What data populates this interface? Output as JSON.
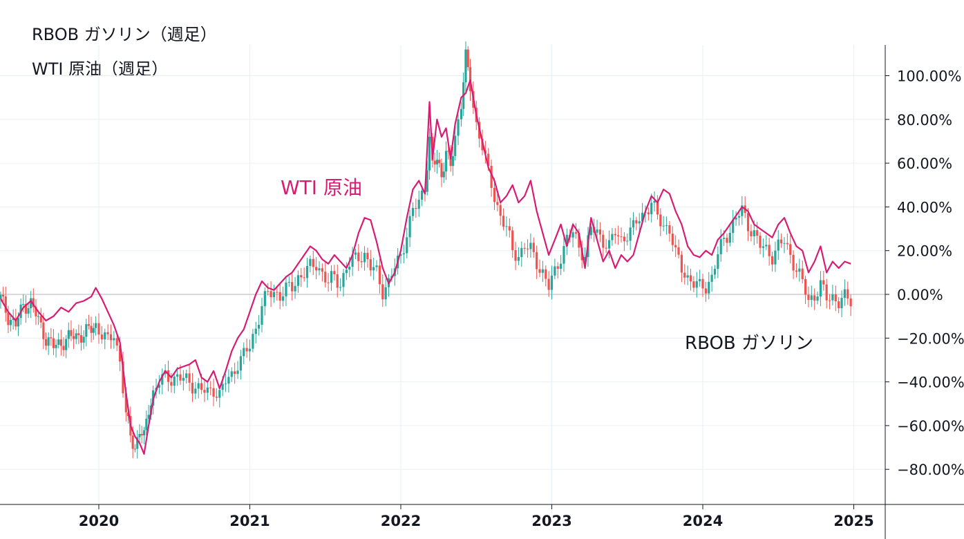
{
  "legend": {
    "rbob": "RBOB ガソリン（週足）",
    "wti": "WTI 原油（週足）"
  },
  "colors": {
    "up": "#26a69a",
    "down": "#ef5350",
    "wti_line": "#d81b72",
    "grid": "#e6f0f5",
    "axis": "#131722",
    "zero_line": "#b2b5be"
  },
  "chart_data": {
    "type": "line",
    "title": "",
    "x_range": [
      2019.35,
      2025.25
    ],
    "ylim": [
      -95,
      115
    ],
    "y_ticks": [
      100,
      80,
      60,
      40,
      20,
      0,
      -20,
      -40,
      -60,
      -80
    ],
    "y_tick_labels": [
      "100.00%",
      "80.00%",
      "60.00%",
      "40.00%",
      "20.00%",
      "0.00%",
      "−20.00%",
      "−40.00%",
      "−60.00%",
      "−80.00%"
    ],
    "x_ticks": [
      2020,
      2021,
      2022,
      2023,
      2024,
      2025
    ],
    "x_tick_labels": [
      "2020",
      "2021",
      "2022",
      "2023",
      "2024",
      "2025"
    ],
    "grid": true,
    "series": [
      {
        "name": "WTI 原油",
        "style": "line",
        "label": "WTI 原油",
        "points": [
          [
            2019.35,
            -2
          ],
          [
            2019.4,
            -8
          ],
          [
            2019.45,
            -12
          ],
          [
            2019.5,
            -6
          ],
          [
            2019.55,
            -3
          ],
          [
            2019.6,
            -8
          ],
          [
            2019.65,
            -12
          ],
          [
            2019.7,
            -10
          ],
          [
            2019.75,
            -6
          ],
          [
            2019.8,
            -8
          ],
          [
            2019.85,
            -4
          ],
          [
            2019.9,
            -3
          ],
          [
            2019.95,
            -1
          ],
          [
            2019.98,
            3
          ],
          [
            2020.02,
            -2
          ],
          [
            2020.06,
            -8
          ],
          [
            2020.1,
            -14
          ],
          [
            2020.14,
            -22
          ],
          [
            2020.18,
            -45
          ],
          [
            2020.21,
            -60
          ],
          [
            2020.24,
            -65
          ],
          [
            2020.27,
            -68
          ],
          [
            2020.3,
            -73
          ],
          [
            2020.33,
            -60
          ],
          [
            2020.36,
            -48
          ],
          [
            2020.4,
            -40
          ],
          [
            2020.44,
            -35
          ],
          [
            2020.48,
            -38
          ],
          [
            2020.52,
            -34
          ],
          [
            2020.56,
            -33
          ],
          [
            2020.6,
            -32
          ],
          [
            2020.64,
            -30
          ],
          [
            2020.68,
            -38
          ],
          [
            2020.72,
            -40
          ],
          [
            2020.76,
            -35
          ],
          [
            2020.8,
            -43
          ],
          [
            2020.84,
            -35
          ],
          [
            2020.88,
            -26
          ],
          [
            2020.92,
            -20
          ],
          [
            2020.96,
            -16
          ],
          [
            2021.0,
            -8
          ],
          [
            2021.04,
            0
          ],
          [
            2021.08,
            6
          ],
          [
            2021.12,
            3
          ],
          [
            2021.16,
            2
          ],
          [
            2021.2,
            5
          ],
          [
            2021.24,
            8
          ],
          [
            2021.28,
            10
          ],
          [
            2021.32,
            14
          ],
          [
            2021.36,
            18
          ],
          [
            2021.4,
            22
          ],
          [
            2021.44,
            20
          ],
          [
            2021.48,
            16
          ],
          [
            2021.52,
            14
          ],
          [
            2021.56,
            18
          ],
          [
            2021.6,
            15
          ],
          [
            2021.64,
            12
          ],
          [
            2021.68,
            18
          ],
          [
            2021.72,
            28
          ],
          [
            2021.76,
            35
          ],
          [
            2021.8,
            34
          ],
          [
            2021.84,
            24
          ],
          [
            2021.88,
            12
          ],
          [
            2021.92,
            5
          ],
          [
            2021.96,
            10
          ],
          [
            2022.0,
            20
          ],
          [
            2022.04,
            35
          ],
          [
            2022.08,
            48
          ],
          [
            2022.12,
            52
          ],
          [
            2022.16,
            46
          ],
          [
            2022.19,
            88
          ],
          [
            2022.21,
            62
          ],
          [
            2022.24,
            80
          ],
          [
            2022.27,
            72
          ],
          [
            2022.3,
            76
          ],
          [
            2022.33,
            62
          ],
          [
            2022.36,
            78
          ],
          [
            2022.4,
            90
          ],
          [
            2022.43,
            92
          ],
          [
            2022.46,
            98
          ],
          [
            2022.5,
            82
          ],
          [
            2022.54,
            70
          ],
          [
            2022.58,
            58
          ],
          [
            2022.62,
            52
          ],
          [
            2022.66,
            42
          ],
          [
            2022.7,
            45
          ],
          [
            2022.74,
            50
          ],
          [
            2022.78,
            42
          ],
          [
            2022.82,
            45
          ],
          [
            2022.86,
            52
          ],
          [
            2022.9,
            38
          ],
          [
            2022.94,
            28
          ],
          [
            2022.98,
            18
          ],
          [
            2023.02,
            25
          ],
          [
            2023.06,
            32
          ],
          [
            2023.1,
            22
          ],
          [
            2023.14,
            32
          ],
          [
            2023.18,
            28
          ],
          [
            2023.22,
            12
          ],
          [
            2023.26,
            35
          ],
          [
            2023.3,
            25
          ],
          [
            2023.34,
            15
          ],
          [
            2023.38,
            20
          ],
          [
            2023.42,
            12
          ],
          [
            2023.46,
            18
          ],
          [
            2023.5,
            15
          ],
          [
            2023.54,
            18
          ],
          [
            2023.58,
            28
          ],
          [
            2023.62,
            38
          ],
          [
            2023.66,
            45
          ],
          [
            2023.7,
            42
          ],
          [
            2023.74,
            48
          ],
          [
            2023.78,
            46
          ],
          [
            2023.82,
            38
          ],
          [
            2023.86,
            32
          ],
          [
            2023.9,
            22
          ],
          [
            2023.94,
            18
          ],
          [
            2023.98,
            17
          ],
          [
            2024.02,
            20
          ],
          [
            2024.06,
            18
          ],
          [
            2024.1,
            25
          ],
          [
            2024.14,
            28
          ],
          [
            2024.18,
            32
          ],
          [
            2024.22,
            36
          ],
          [
            2024.26,
            40
          ],
          [
            2024.3,
            38
          ],
          [
            2024.34,
            32
          ],
          [
            2024.38,
            30
          ],
          [
            2024.42,
            28
          ],
          [
            2024.46,
            26
          ],
          [
            2024.5,
            32
          ],
          [
            2024.54,
            35
          ],
          [
            2024.58,
            28
          ],
          [
            2024.62,
            22
          ],
          [
            2024.66,
            20
          ],
          [
            2024.7,
            10
          ],
          [
            2024.74,
            15
          ],
          [
            2024.78,
            22
          ],
          [
            2024.82,
            10
          ],
          [
            2024.86,
            15
          ],
          [
            2024.9,
            12
          ],
          [
            2024.94,
            15
          ],
          [
            2024.98,
            14
          ]
        ]
      },
      {
        "name": "RBOB ガソリン",
        "style": "candlestick",
        "label": "RBOB ガソリン",
        "points": [
          [
            2019.35,
            -2
          ],
          [
            2019.4,
            -10
          ],
          [
            2019.45,
            -14
          ],
          [
            2019.5,
            -5
          ],
          [
            2019.55,
            -4
          ],
          [
            2019.6,
            -12
          ],
          [
            2019.65,
            -20
          ],
          [
            2019.7,
            -24
          ],
          [
            2019.75,
            -22
          ],
          [
            2019.8,
            -20
          ],
          [
            2019.85,
            -19
          ],
          [
            2019.9,
            -18
          ],
          [
            2019.95,
            -16
          ],
          [
            2019.98,
            -14
          ],
          [
            2020.02,
            -18
          ],
          [
            2020.06,
            -22
          ],
          [
            2020.1,
            -18
          ],
          [
            2020.14,
            -30
          ],
          [
            2020.18,
            -55
          ],
          [
            2020.21,
            -65
          ],
          [
            2020.24,
            -70
          ],
          [
            2020.27,
            -62
          ],
          [
            2020.3,
            -66
          ],
          [
            2020.33,
            -52
          ],
          [
            2020.36,
            -45
          ],
          [
            2020.4,
            -40
          ],
          [
            2020.44,
            -38
          ],
          [
            2020.48,
            -38
          ],
          [
            2020.52,
            -38
          ],
          [
            2020.56,
            -39
          ],
          [
            2020.6,
            -40
          ],
          [
            2020.64,
            -42
          ],
          [
            2020.68,
            -44
          ],
          [
            2020.72,
            -45
          ],
          [
            2020.76,
            -43
          ],
          [
            2020.8,
            -46
          ],
          [
            2020.84,
            -40
          ],
          [
            2020.88,
            -37
          ],
          [
            2020.92,
            -31
          ],
          [
            2020.96,
            -28
          ],
          [
            2021.0,
            -24
          ],
          [
            2021.04,
            -15
          ],
          [
            2021.08,
            -5
          ],
          [
            2021.12,
            0
          ],
          [
            2021.16,
            1
          ],
          [
            2021.2,
            0
          ],
          [
            2021.24,
            2
          ],
          [
            2021.28,
            3
          ],
          [
            2021.32,
            8
          ],
          [
            2021.36,
            10
          ],
          [
            2021.4,
            12
          ],
          [
            2021.44,
            14
          ],
          [
            2021.48,
            10
          ],
          [
            2021.52,
            5
          ],
          [
            2021.56,
            8
          ],
          [
            2021.6,
            5
          ],
          [
            2021.64,
            12
          ],
          [
            2021.68,
            15
          ],
          [
            2021.72,
            18
          ],
          [
            2021.76,
            18
          ],
          [
            2021.8,
            12
          ],
          [
            2021.84,
            10
          ],
          [
            2021.88,
            2
          ],
          [
            2021.92,
            5
          ],
          [
            2021.96,
            12
          ],
          [
            2022.0,
            18
          ],
          [
            2022.04,
            28
          ],
          [
            2022.08,
            38
          ],
          [
            2022.12,
            42
          ],
          [
            2022.16,
            50
          ],
          [
            2022.19,
            70
          ],
          [
            2022.21,
            58
          ],
          [
            2022.24,
            62
          ],
          [
            2022.27,
            55
          ],
          [
            2022.3,
            65
          ],
          [
            2022.33,
            58
          ],
          [
            2022.36,
            72
          ],
          [
            2022.4,
            88
          ],
          [
            2022.43,
            108
          ],
          [
            2022.46,
            95
          ],
          [
            2022.5,
            78
          ],
          [
            2022.54,
            68
          ],
          [
            2022.58,
            55
          ],
          [
            2022.62,
            45
          ],
          [
            2022.66,
            36
          ],
          [
            2022.7,
            30
          ],
          [
            2022.74,
            20
          ],
          [
            2022.78,
            18
          ],
          [
            2022.82,
            22
          ],
          [
            2022.86,
            20
          ],
          [
            2022.9,
            15
          ],
          [
            2022.94,
            10
          ],
          [
            2022.98,
            3
          ],
          [
            2023.02,
            10
          ],
          [
            2023.06,
            18
          ],
          [
            2023.1,
            25
          ],
          [
            2023.14,
            28
          ],
          [
            2023.18,
            22
          ],
          [
            2023.22,
            18
          ],
          [
            2023.26,
            30
          ],
          [
            2023.3,
            28
          ],
          [
            2023.34,
            25
          ],
          [
            2023.38,
            22
          ],
          [
            2023.42,
            28
          ],
          [
            2023.46,
            25
          ],
          [
            2023.5,
            28
          ],
          [
            2023.54,
            30
          ],
          [
            2023.58,
            35
          ],
          [
            2023.62,
            38
          ],
          [
            2023.66,
            42
          ],
          [
            2023.7,
            35
          ],
          [
            2023.74,
            32
          ],
          [
            2023.78,
            30
          ],
          [
            2023.82,
            18
          ],
          [
            2023.86,
            12
          ],
          [
            2023.9,
            8
          ],
          [
            2023.94,
            5
          ],
          [
            2023.98,
            3
          ],
          [
            2024.02,
            4
          ],
          [
            2024.06,
            8
          ],
          [
            2024.1,
            18
          ],
          [
            2024.14,
            25
          ],
          [
            2024.18,
            30
          ],
          [
            2024.22,
            35
          ],
          [
            2024.26,
            38
          ],
          [
            2024.3,
            32
          ],
          [
            2024.34,
            28
          ],
          [
            2024.38,
            22
          ],
          [
            2024.42,
            20
          ],
          [
            2024.46,
            18
          ],
          [
            2024.5,
            22
          ],
          [
            2024.54,
            24
          ],
          [
            2024.58,
            18
          ],
          [
            2024.62,
            12
          ],
          [
            2024.66,
            5
          ],
          [
            2024.7,
            -3
          ],
          [
            2024.74,
            0
          ],
          [
            2024.78,
            4
          ],
          [
            2024.82,
            -2
          ],
          [
            2024.86,
            -1
          ],
          [
            2024.9,
            -3
          ],
          [
            2024.94,
            -2
          ],
          [
            2024.98,
            -3
          ]
        ]
      }
    ],
    "annotations": [
      {
        "text": "WTI 原油",
        "series": "WTI 原油"
      },
      {
        "text": "RBOB ガソリン",
        "series": "RBOB ガソリン"
      }
    ]
  }
}
